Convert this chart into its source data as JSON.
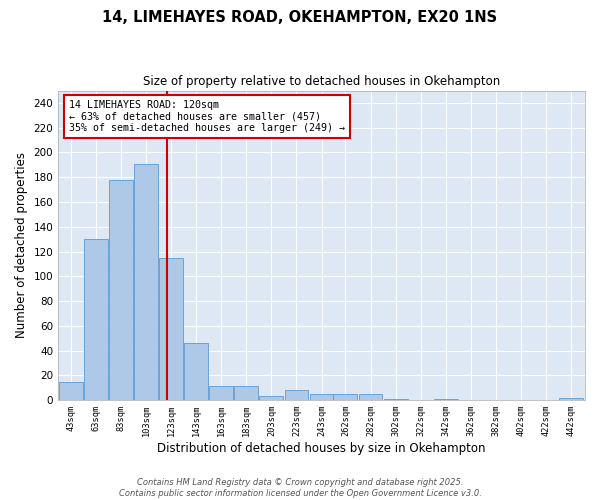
{
  "title_line1": "14, LIMEHAYES ROAD, OKEHAMPTON, EX20 1NS",
  "title_line2": "Size of property relative to detached houses in Okehampton",
  "xlabel": "Distribution of detached houses by size in Okehampton",
  "ylabel": "Number of detached properties",
  "bar_labels": [
    "43sqm",
    "63sqm",
    "83sqm",
    "103sqm",
    "123sqm",
    "143sqm",
    "163sqm",
    "183sqm",
    "203sqm",
    "223sqm",
    "243sqm",
    "262sqm",
    "282sqm",
    "302sqm",
    "322sqm",
    "342sqm",
    "362sqm",
    "382sqm",
    "402sqm",
    "422sqm",
    "442sqm"
  ],
  "bar_values": [
    15,
    130,
    178,
    191,
    115,
    46,
    11,
    11,
    3,
    8,
    5,
    5,
    5,
    1,
    0,
    1,
    0,
    0,
    0,
    0,
    2
  ],
  "bar_color": "#aec9e8",
  "bar_edge_color": "#5b9bd5",
  "property_size": 120,
  "vline_color": "#cc0000",
  "annotation_text": "14 LIMEHAYES ROAD: 120sqm\n← 63% of detached houses are smaller (457)\n35% of semi-detached houses are larger (249) →",
  "annotation_box_color": "#ffffff",
  "annotation_edge_color": "#cc0000",
  "ylim": [
    0,
    250
  ],
  "yticks": [
    0,
    20,
    40,
    60,
    80,
    100,
    120,
    140,
    160,
    180,
    200,
    220,
    240
  ],
  "bg_color": "#dde8f4",
  "grid_color": "#ffffff",
  "fig_bg_color": "#ffffff",
  "footer_line1": "Contains HM Land Registry data © Crown copyright and database right 2025.",
  "footer_line2": "Contains public sector information licensed under the Open Government Licence v3.0."
}
